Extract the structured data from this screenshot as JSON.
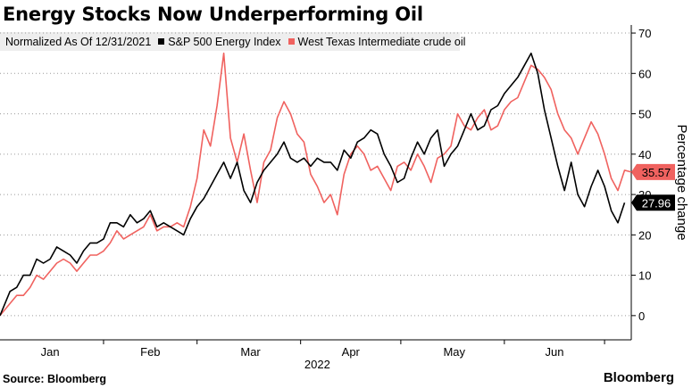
{
  "title": "Energy Stocks Now Underperforming Oil",
  "legend": {
    "note": "Normalized As Of 12/31/2021",
    "items": [
      {
        "label": "S&P 500 Energy Index",
        "color": "#000000"
      },
      {
        "label": "West Texas Intermediate crude oil",
        "color": "#f0625f"
      }
    ]
  },
  "footer": {
    "source": "Source: Bloomberg",
    "brand": "Bloomberg"
  },
  "chart_data": {
    "type": "line",
    "xlabel": "2022",
    "ylabel": "Percentage change",
    "ylim": [
      -6,
      72
    ],
    "y_ticks": [
      0,
      10,
      20,
      30,
      40,
      50,
      60,
      70
    ],
    "x_range": [
      "2021-12-31",
      "2022-07-08"
    ],
    "x_ticks": [
      {
        "label": "Jan",
        "date": "2022-01-15"
      },
      {
        "label": "Feb",
        "date": "2022-02-14"
      },
      {
        "label": "Mar",
        "date": "2022-03-16"
      },
      {
        "label": "Apr",
        "date": "2022-04-15"
      },
      {
        "label": "May",
        "date": "2022-05-16"
      },
      {
        "label": "Jun",
        "date": "2022-06-15"
      }
    ],
    "grid": "horizontal-dotted",
    "series": [
      {
        "name": "S&P 500 Energy Index",
        "color": "#000000",
        "end_label": "27.96",
        "points": [
          [
            "2021-12-31",
            0
          ],
          [
            "2022-01-03",
            6
          ],
          [
            "2022-01-05",
            7
          ],
          [
            "2022-01-07",
            10
          ],
          [
            "2022-01-09",
            10
          ],
          [
            "2022-01-11",
            14
          ],
          [
            "2022-01-13",
            13
          ],
          [
            "2022-01-15",
            14
          ],
          [
            "2022-01-17",
            17
          ],
          [
            "2022-01-19",
            16
          ],
          [
            "2022-01-21",
            15
          ],
          [
            "2022-01-23",
            13
          ],
          [
            "2022-01-25",
            16
          ],
          [
            "2022-01-27",
            18
          ],
          [
            "2022-01-29",
            18
          ],
          [
            "2022-01-31",
            19
          ],
          [
            "2022-02-02",
            23
          ],
          [
            "2022-02-04",
            23
          ],
          [
            "2022-02-06",
            22
          ],
          [
            "2022-02-08",
            25
          ],
          [
            "2022-02-10",
            23
          ],
          [
            "2022-02-12",
            24
          ],
          [
            "2022-02-14",
            26
          ],
          [
            "2022-02-16",
            22
          ],
          [
            "2022-02-18",
            23
          ],
          [
            "2022-02-20",
            22
          ],
          [
            "2022-02-22",
            21
          ],
          [
            "2022-02-24",
            20
          ],
          [
            "2022-02-26",
            24
          ],
          [
            "2022-02-28",
            27
          ],
          [
            "2022-03-02",
            29
          ],
          [
            "2022-03-04",
            32
          ],
          [
            "2022-03-06",
            35
          ],
          [
            "2022-03-08",
            38
          ],
          [
            "2022-03-10",
            34
          ],
          [
            "2022-03-12",
            38
          ],
          [
            "2022-03-14",
            31
          ],
          [
            "2022-03-16",
            28
          ],
          [
            "2022-03-18",
            33
          ],
          [
            "2022-03-20",
            36
          ],
          [
            "2022-03-22",
            38
          ],
          [
            "2022-03-24",
            40
          ],
          [
            "2022-03-26",
            43
          ],
          [
            "2022-03-28",
            39
          ],
          [
            "2022-03-30",
            38
          ],
          [
            "2022-04-01",
            39
          ],
          [
            "2022-04-03",
            37
          ],
          [
            "2022-04-05",
            39
          ],
          [
            "2022-04-07",
            38
          ],
          [
            "2022-04-09",
            38
          ],
          [
            "2022-04-11",
            36
          ],
          [
            "2022-04-13",
            41
          ],
          [
            "2022-04-15",
            39
          ],
          [
            "2022-04-17",
            43
          ],
          [
            "2022-04-19",
            44
          ],
          [
            "2022-04-21",
            46
          ],
          [
            "2022-04-23",
            45
          ],
          [
            "2022-04-25",
            40
          ],
          [
            "2022-04-27",
            37
          ],
          [
            "2022-04-29",
            33
          ],
          [
            "2022-05-01",
            34
          ],
          [
            "2022-05-03",
            39
          ],
          [
            "2022-05-05",
            43
          ],
          [
            "2022-05-07",
            40
          ],
          [
            "2022-05-09",
            44
          ],
          [
            "2022-05-11",
            46
          ],
          [
            "2022-05-13",
            37
          ],
          [
            "2022-05-15",
            40
          ],
          [
            "2022-05-17",
            42
          ],
          [
            "2022-05-19",
            46
          ],
          [
            "2022-05-21",
            50
          ],
          [
            "2022-05-23",
            46
          ],
          [
            "2022-05-25",
            47
          ],
          [
            "2022-05-27",
            51
          ],
          [
            "2022-05-29",
            52
          ],
          [
            "2022-05-31",
            55
          ],
          [
            "2022-06-02",
            57
          ],
          [
            "2022-06-04",
            59
          ],
          [
            "2022-06-06",
            62
          ],
          [
            "2022-06-08",
            65
          ],
          [
            "2022-06-10",
            60
          ],
          [
            "2022-06-12",
            51
          ],
          [
            "2022-06-14",
            44
          ],
          [
            "2022-06-16",
            37
          ],
          [
            "2022-06-18",
            31
          ],
          [
            "2022-06-20",
            38
          ],
          [
            "2022-06-22",
            30
          ],
          [
            "2022-06-24",
            27
          ],
          [
            "2022-06-26",
            32
          ],
          [
            "2022-06-28",
            36
          ],
          [
            "2022-06-30",
            32
          ],
          [
            "2022-07-02",
            26
          ],
          [
            "2022-07-04",
            23
          ],
          [
            "2022-07-06",
            27.96
          ]
        ]
      },
      {
        "name": "West Texas Intermediate crude oil",
        "color": "#f0625f",
        "end_label": "35.57",
        "points": [
          [
            "2021-12-31",
            0
          ],
          [
            "2022-01-03",
            3
          ],
          [
            "2022-01-05",
            5
          ],
          [
            "2022-01-07",
            5
          ],
          [
            "2022-01-09",
            7
          ],
          [
            "2022-01-11",
            10
          ],
          [
            "2022-01-13",
            9
          ],
          [
            "2022-01-15",
            11
          ],
          [
            "2022-01-17",
            13
          ],
          [
            "2022-01-19",
            14
          ],
          [
            "2022-01-21",
            13
          ],
          [
            "2022-01-23",
            11
          ],
          [
            "2022-01-25",
            13
          ],
          [
            "2022-01-27",
            15
          ],
          [
            "2022-01-29",
            15
          ],
          [
            "2022-01-31",
            16
          ],
          [
            "2022-02-02",
            18
          ],
          [
            "2022-02-04",
            21
          ],
          [
            "2022-02-06",
            19
          ],
          [
            "2022-02-08",
            20
          ],
          [
            "2022-02-10",
            21
          ],
          [
            "2022-02-12",
            22
          ],
          [
            "2022-02-14",
            25
          ],
          [
            "2022-02-16",
            21
          ],
          [
            "2022-02-18",
            22
          ],
          [
            "2022-02-20",
            22
          ],
          [
            "2022-02-22",
            23
          ],
          [
            "2022-02-24",
            22
          ],
          [
            "2022-02-26",
            27
          ],
          [
            "2022-02-28",
            34
          ],
          [
            "2022-03-02",
            46
          ],
          [
            "2022-03-04",
            42
          ],
          [
            "2022-03-06",
            52
          ],
          [
            "2022-03-08",
            65
          ],
          [
            "2022-03-10",
            44
          ],
          [
            "2022-03-12",
            38
          ],
          [
            "2022-03-14",
            45
          ],
          [
            "2022-03-16",
            36
          ],
          [
            "2022-03-18",
            28
          ],
          [
            "2022-03-20",
            38
          ],
          [
            "2022-03-22",
            41
          ],
          [
            "2022-03-24",
            49
          ],
          [
            "2022-03-26",
            53
          ],
          [
            "2022-03-28",
            50
          ],
          [
            "2022-03-30",
            45
          ],
          [
            "2022-04-01",
            43
          ],
          [
            "2022-04-03",
            35
          ],
          [
            "2022-04-05",
            32
          ],
          [
            "2022-04-07",
            28
          ],
          [
            "2022-04-09",
            30
          ],
          [
            "2022-04-11",
            25
          ],
          [
            "2022-04-13",
            35
          ],
          [
            "2022-04-15",
            40
          ],
          [
            "2022-04-17",
            42
          ],
          [
            "2022-04-19",
            40
          ],
          [
            "2022-04-21",
            36
          ],
          [
            "2022-04-23",
            37
          ],
          [
            "2022-04-25",
            34
          ],
          [
            "2022-04-27",
            31
          ],
          [
            "2022-04-29",
            37
          ],
          [
            "2022-05-01",
            38
          ],
          [
            "2022-05-03",
            36
          ],
          [
            "2022-05-05",
            40
          ],
          [
            "2022-05-07",
            37
          ],
          [
            "2022-05-09",
            33
          ],
          [
            "2022-05-11",
            39
          ],
          [
            "2022-05-13",
            40
          ],
          [
            "2022-05-15",
            42
          ],
          [
            "2022-05-17",
            50
          ],
          [
            "2022-05-19",
            47
          ],
          [
            "2022-05-21",
            46
          ],
          [
            "2022-05-23",
            49
          ],
          [
            "2022-05-25",
            51
          ],
          [
            "2022-05-27",
            46
          ],
          [
            "2022-05-29",
            47
          ],
          [
            "2022-05-31",
            51
          ],
          [
            "2022-06-02",
            53
          ],
          [
            "2022-06-04",
            54
          ],
          [
            "2022-06-06",
            58
          ],
          [
            "2022-06-08",
            62
          ],
          [
            "2022-06-10",
            61
          ],
          [
            "2022-06-12",
            59
          ],
          [
            "2022-06-14",
            56
          ],
          [
            "2022-06-16",
            50
          ],
          [
            "2022-06-18",
            46
          ],
          [
            "2022-06-20",
            44
          ],
          [
            "2022-06-22",
            40
          ],
          [
            "2022-06-24",
            44
          ],
          [
            "2022-06-26",
            48
          ],
          [
            "2022-06-28",
            45
          ],
          [
            "2022-06-30",
            40
          ],
          [
            "2022-07-02",
            34
          ],
          [
            "2022-07-04",
            31
          ],
          [
            "2022-07-06",
            36
          ],
          [
            "2022-07-08",
            35.57
          ]
        ]
      }
    ]
  }
}
